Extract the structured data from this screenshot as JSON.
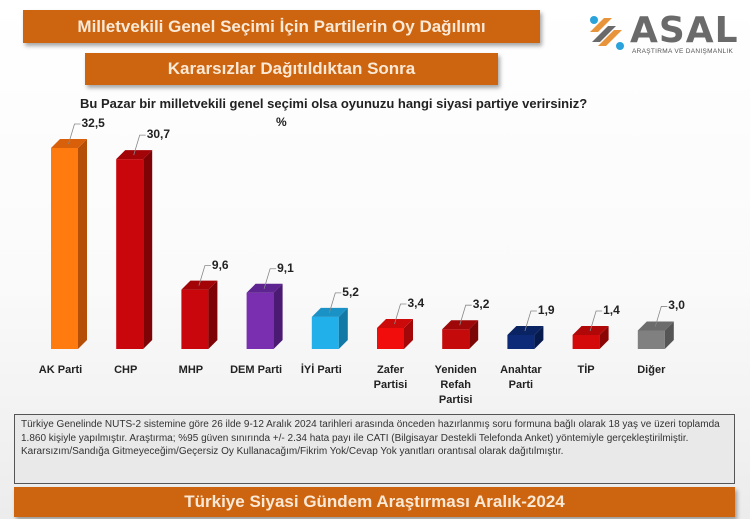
{
  "header": {
    "title": "Milletvekili Genel Seçimi İçin Partilerin Oy Dağılımı",
    "subtitle": "Kararsızlar Dağıtıldıktan Sonra",
    "logo_word": "ASAL",
    "logo_tagline": "ARAŞTIRMA VE DANIŞMANLIK"
  },
  "question": "Bu Pazar bir milletvekili genel seçimi olsa oyunuzu  hangi siyasi partiye verirsiniz?",
  "unit": "%",
  "note": "Türkiye Genelinde NUTS-2 sistemine göre 26 ilde 9-12 Aralık 2024 tarihleri arasında önceden  hazırlanmış soru formuna bağlı olarak 18 yaş ve üzeri toplamda 1.860 kişiyle yapılmıştır. Araştırma; %95 güven sınırında +/- 2.34 hata payı ile CATI (Bilgisayar Destekli Telefonda  Anket) yöntemiyle gerçekleştirilmiştir.  Kararsızım/Sandığa Gitmeyeceğim/Geçersiz  Oy Kullanacağım/Fikrim Yok/Cevap Yok yanıtları orantısal olarak dağıtılmıştır.",
  "footer": "Türkiye Siyasi Gündem Araştırması Aralık-2024",
  "chart_data": {
    "type": "bar",
    "title": "Bu Pazar bir milletvekili genel seçimi olsa oyunuzu hangi siyasi partiye verirsiniz?",
    "xlabel": "",
    "ylabel": "%",
    "grid": false,
    "legend": "none",
    "categories": [
      "AK Parti",
      "CHP",
      "MHP",
      "DEM Parti",
      "İYİ Parti",
      "Zafer Partisi",
      "Yeniden Refah Partisi",
      "Anahtar Parti",
      "TİP",
      "Diğer"
    ],
    "category_lines": [
      [
        "AK Parti"
      ],
      [
        "CHP"
      ],
      [
        "MHP"
      ],
      [
        "DEM Parti"
      ],
      [
        "İYİ Parti"
      ],
      [
        "Zafer",
        "Partisi"
      ],
      [
        "Yeniden",
        "Refah",
        "Partisi"
      ],
      [
        "Anahtar",
        "Parti"
      ],
      [
        "TİP"
      ],
      [
        "Diğer"
      ]
    ],
    "values": [
      32.5,
      30.7,
      9.6,
      9.1,
      5.2,
      3.4,
      3.2,
      1.9,
      1.4,
      3.0
    ],
    "value_labels": [
      "32,5",
      "30,7",
      "9,6",
      "9,1",
      "5,2",
      "3,4",
      "3,2",
      "1,9",
      "1,4",
      "3,0"
    ],
    "colors": [
      "#ff7a0f",
      "#c8060b",
      "#c8060b",
      "#7a2fb0",
      "#21b0ea",
      "#f20d0d",
      "#c40a0a",
      "#0c2a78",
      "#d40a0a",
      "#808080"
    ],
    "side_colors": [
      "#b54f08",
      "#7e0306",
      "#7e0306",
      "#4b1a72",
      "#1279a6",
      "#a30707",
      "#7c0505",
      "#061a4e",
      "#8c0505",
      "#555555"
    ],
    "top_colors": [
      "#d9600b",
      "#a20408",
      "#a20408",
      "#5e2490",
      "#1a92c6",
      "#cc0a0a",
      "#9e0808",
      "#0a2363",
      "#b00808",
      "#6c6c6c"
    ]
  }
}
